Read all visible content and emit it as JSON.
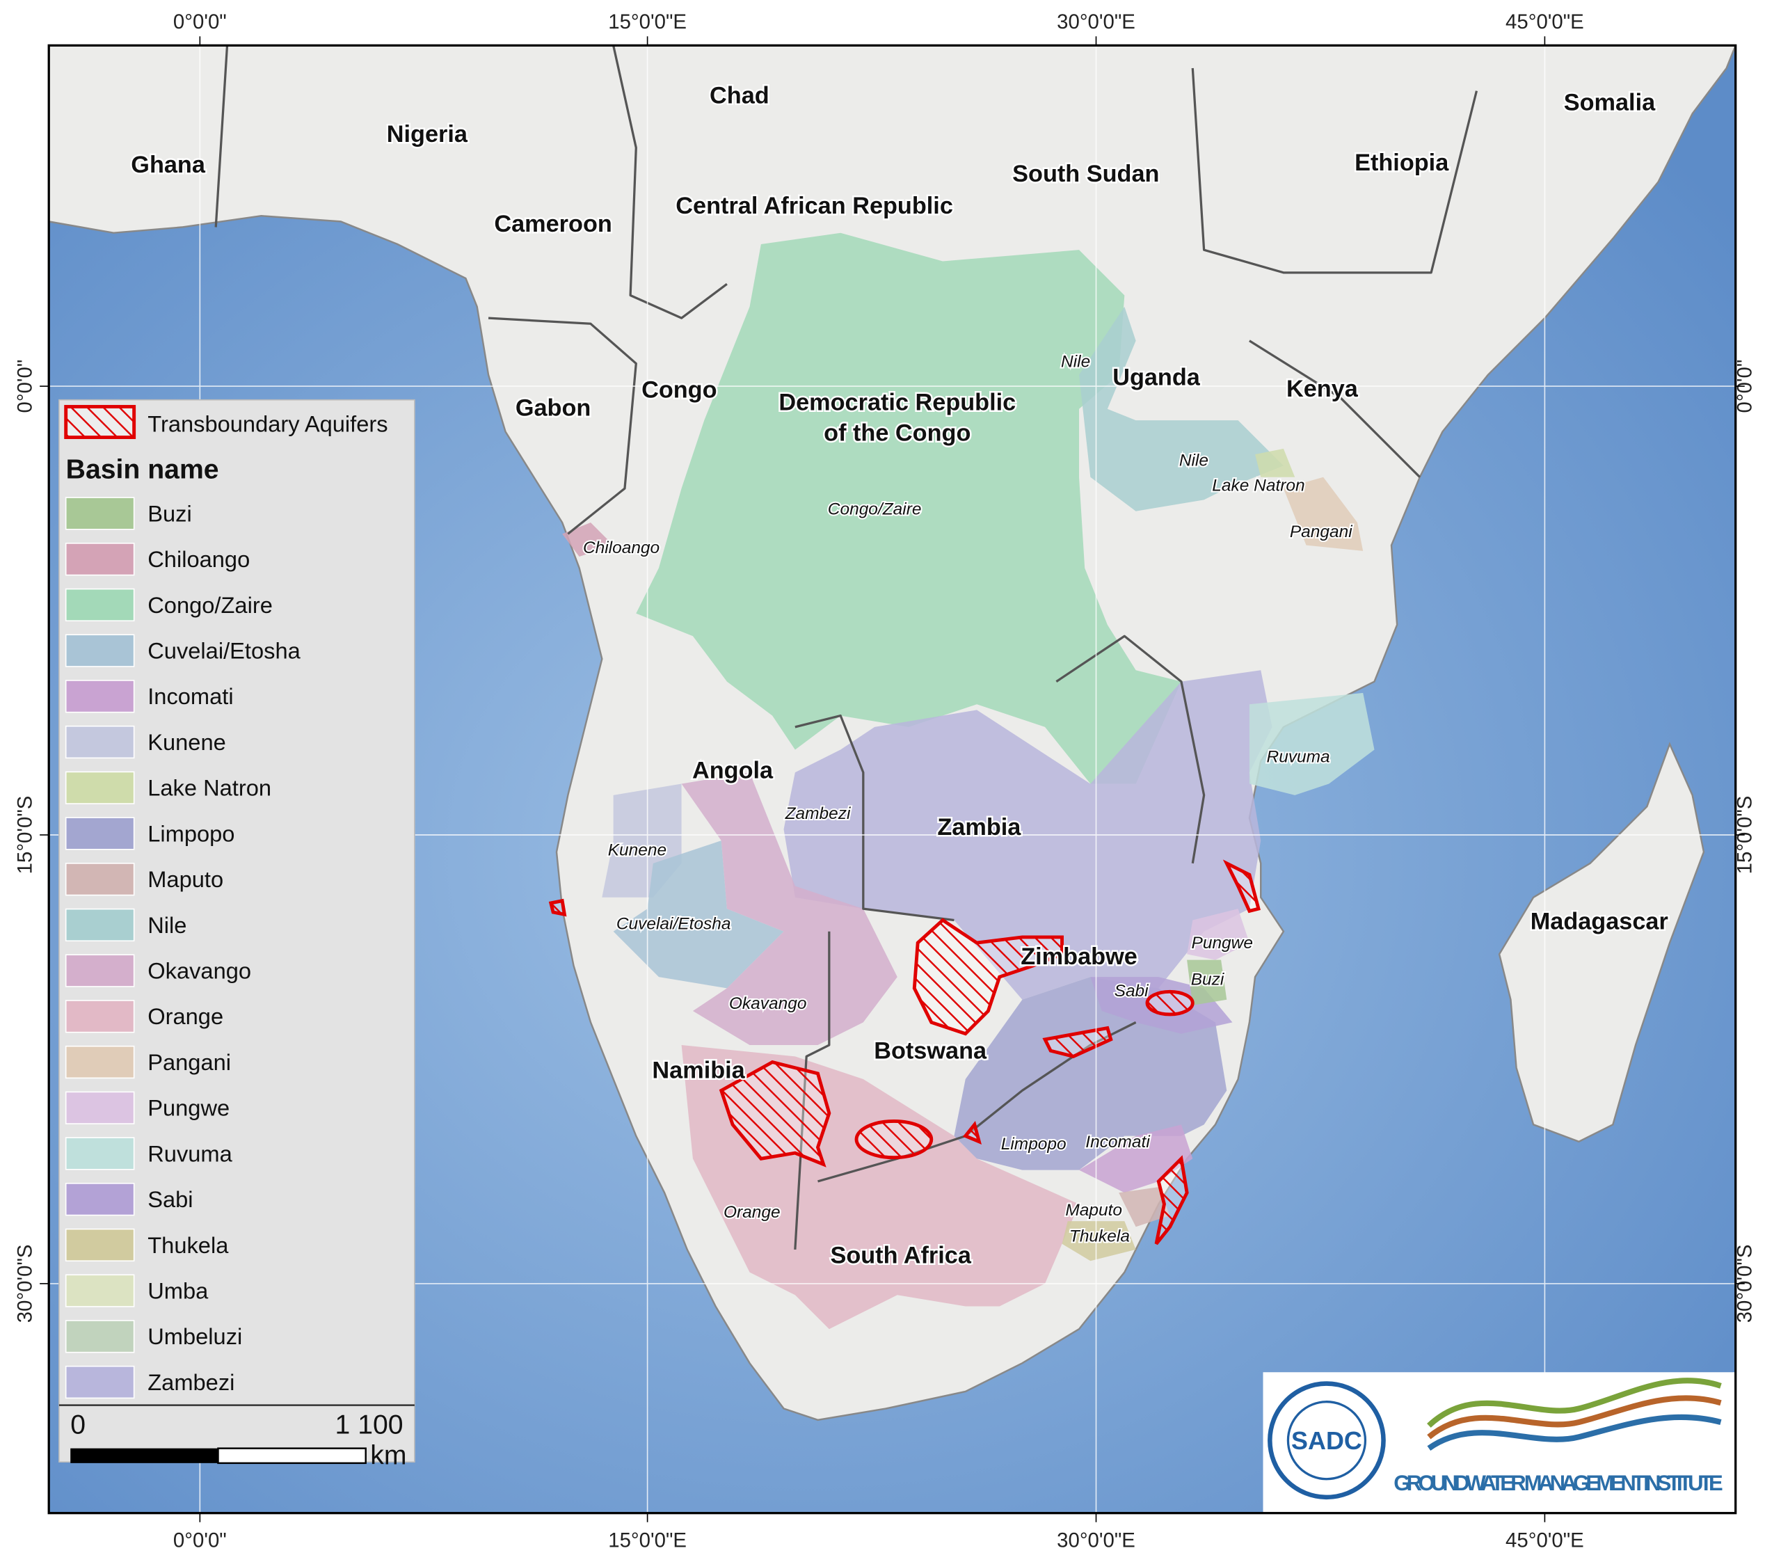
{
  "graticule": {
    "top": [
      "0°0'0\"",
      "15°0'0\"E",
      "30°0'0\"E",
      "45°0'0\"E"
    ],
    "bottom": [
      "0°0'0\"",
      "15°0'0\"E",
      "30°0'0\"E",
      "45°0'0\"E"
    ],
    "left": [
      "0°0'0\"",
      "15°0'0\"S",
      "30°0'0\"S"
    ],
    "right": [
      "0°0'0\"",
      "15°0'0\"S",
      "30°0'0\"S"
    ]
  },
  "countries": [
    {
      "name": "Ghana"
    },
    {
      "name": "Nigeria"
    },
    {
      "name": "Chad"
    },
    {
      "name": "Somalia"
    },
    {
      "name": "Ethiopia"
    },
    {
      "name": "South Sudan"
    },
    {
      "name": "Cameroon"
    },
    {
      "name": "Central African Republic"
    },
    {
      "name": "Gabon"
    },
    {
      "name": "Congo"
    },
    {
      "lines": [
        "Democratic Republic",
        "of the Congo"
      ]
    },
    {
      "name": "Uganda"
    },
    {
      "name": "Kenya"
    },
    {
      "name": "Angola"
    },
    {
      "name": "Zambia"
    },
    {
      "name": "Zimbabwe"
    },
    {
      "name": "Madagascar"
    },
    {
      "name": "Botswana"
    },
    {
      "name": "Namibia"
    },
    {
      "name": "South Africa"
    }
  ],
  "basin_labels": [
    "Nile",
    "Nile",
    "Lake Natron",
    "Pangani",
    "Congo/Zaire",
    "Chiloango",
    "Ruvuma",
    "Zambezi",
    "Kunene",
    "Cuvelai/Etosha",
    "Pungwe",
    "Buzi",
    "Sabi",
    "Okavango",
    "Limpopo",
    "Incomati",
    "Maputo",
    "Thukela",
    "Orange"
  ],
  "legend": {
    "aquifer_label": "Transboundary Aquifers",
    "aquifer_color": "#e00000",
    "title": "Basin name",
    "entries": [
      {
        "name": "Buzi",
        "color": "#a8c896"
      },
      {
        "name": "Chiloango",
        "color": "#d4a3b6"
      },
      {
        "name": "Congo/Zaire",
        "color": "#a3d9b8"
      },
      {
        "name": "Cuvelai/Etosha",
        "color": "#a9c4d6"
      },
      {
        "name": "Incomati",
        "color": "#c9a3d2"
      },
      {
        "name": "Kunene",
        "color": "#c4c8de"
      },
      {
        "name": "Lake Natron",
        "color": "#cfdcab"
      },
      {
        "name": "Limpopo",
        "color": "#a3a6d0"
      },
      {
        "name": "Maputo",
        "color": "#d2b6b4"
      },
      {
        "name": "Nile",
        "color": "#a9cfd0"
      },
      {
        "name": "Okavango",
        "color": "#d4afcc"
      },
      {
        "name": "Orange",
        "color": "#e2b9c6"
      },
      {
        "name": "Pangani",
        "color": "#e0ccb8"
      },
      {
        "name": "Pungwe",
        "color": "#dcc4e2"
      },
      {
        "name": "Ruvuma",
        "color": "#bfe0dc"
      },
      {
        "name": "Sabi",
        "color": "#b3a2d6"
      },
      {
        "name": "Thukela",
        "color": "#d1cb9f"
      },
      {
        "name": "Umba",
        "color": "#dce3c2"
      },
      {
        "name": "Umbeluzi",
        "color": "#c1d3bd"
      },
      {
        "name": "Zambezi",
        "color": "#b8b6dc"
      }
    ]
  },
  "scale_bar": {
    "start": "0",
    "end": "1 100",
    "unit": "km"
  },
  "logo": {
    "sadc": "SADC",
    "institute": "GROUNDWATER MANAGEMENT INSTITUTE"
  }
}
